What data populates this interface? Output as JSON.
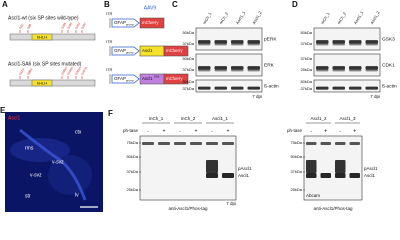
{
  "panels": {
    "a": {
      "letter": "A",
      "wt": {
        "title": "Ascl1-wt (six SP sites wild-type)",
        "domain": "bHLH",
        "sites": [
          "S62",
          "S88",
          "S185",
          "S190",
          "S202",
          "S207"
        ]
      },
      "sa6": {
        "title": "Ascl1-SA6 (six SP sites mutated)",
        "domain": "bHLH",
        "sites": [
          "S62A",
          "S88A",
          "S185A",
          "S190A",
          "S202A",
          "S207A"
        ]
      }
    },
    "b": {
      "letter": "B",
      "serotype": "AAV9",
      "rows": [
        {
          "itr": "ITR",
          "promoter": "GFAP",
          "promoter_sub": "promo",
          "genes": [
            "mCherry"
          ]
        },
        {
          "itr": "ITR",
          "promoter": "GFAP",
          "promoter_sub": "promo",
          "genes": [
            "Ascl1",
            "mCherry"
          ]
        },
        {
          "itr": "ITR",
          "promoter": "GFAP",
          "promoter_sub": "promo",
          "genes": [
            "Ascl1",
            "mCherry"
          ],
          "gene_sub": "SA6"
        }
      ]
    },
    "c": {
      "letter": "C",
      "lanes": [
        "mCh_1",
        "mCh_2",
        "Ascl1_1",
        "Ascl1_2"
      ],
      "blots": [
        {
          "target": "pERK",
          "markers": [
            "50kDa",
            "37kDa"
          ]
        },
        {
          "target": "ERK",
          "markers": [
            "50kDa",
            "37kDa"
          ]
        },
        {
          "target": "ß-actin",
          "markers": [
            "50kDa",
            "37kDa"
          ]
        }
      ],
      "timepoint": "7 dpi"
    },
    "d": {
      "letter": "D",
      "lanes": [
        "mCh_1",
        "mCh_2",
        "Ascl1_1",
        "Ascl1_2"
      ],
      "blots": [
        {
          "target": "GSK3",
          "markers": [
            "50kDa",
            "37kDa"
          ]
        },
        {
          "target": "CDK1",
          "markers": [
            "37kDa",
            "25kDa"
          ]
        },
        {
          "target": "ß-actin",
          "markers": [
            "50kDa",
            "37kDa"
          ]
        }
      ],
      "timepoint": "7 dpi"
    },
    "e": {
      "letter": "E",
      "stain": "Ascl1",
      "regions": [
        "ctx",
        "rms",
        "v-svz",
        "v-svz",
        "str",
        "lv"
      ]
    },
    "f": {
      "letter": "F",
      "left": {
        "lanes": [
          "mCh_1",
          "mCh_2",
          "Ascl1_1"
        ],
        "treatment_label": "ph-tase",
        "treatments": [
          "-",
          "+",
          "-",
          "+",
          "-",
          "+"
        ],
        "markers": [
          "75kDa",
          "50kDa",
          "37kDa",
          "25kDa"
        ],
        "bands": [
          "pAscl1",
          "Ascl1"
        ],
        "timepoint": "7 dpi",
        "antibody": "anti-Ascl1/Phos-tag"
      },
      "right": {
        "lanes": [
          "Ascl1_2",
          "Ascl1_3"
        ],
        "treatment_label": "ph-tase",
        "treatments": [
          "-",
          "+",
          "-",
          "+"
        ],
        "markers": [
          "75kDa",
          "50kDa",
          "37kDa",
          "25kDa"
        ],
        "bands": [
          "pAscl1",
          "Ascl1"
        ],
        "source": "Abcam",
        "antibody": "anti-Ascl1/Phos-tag"
      }
    }
  }
}
